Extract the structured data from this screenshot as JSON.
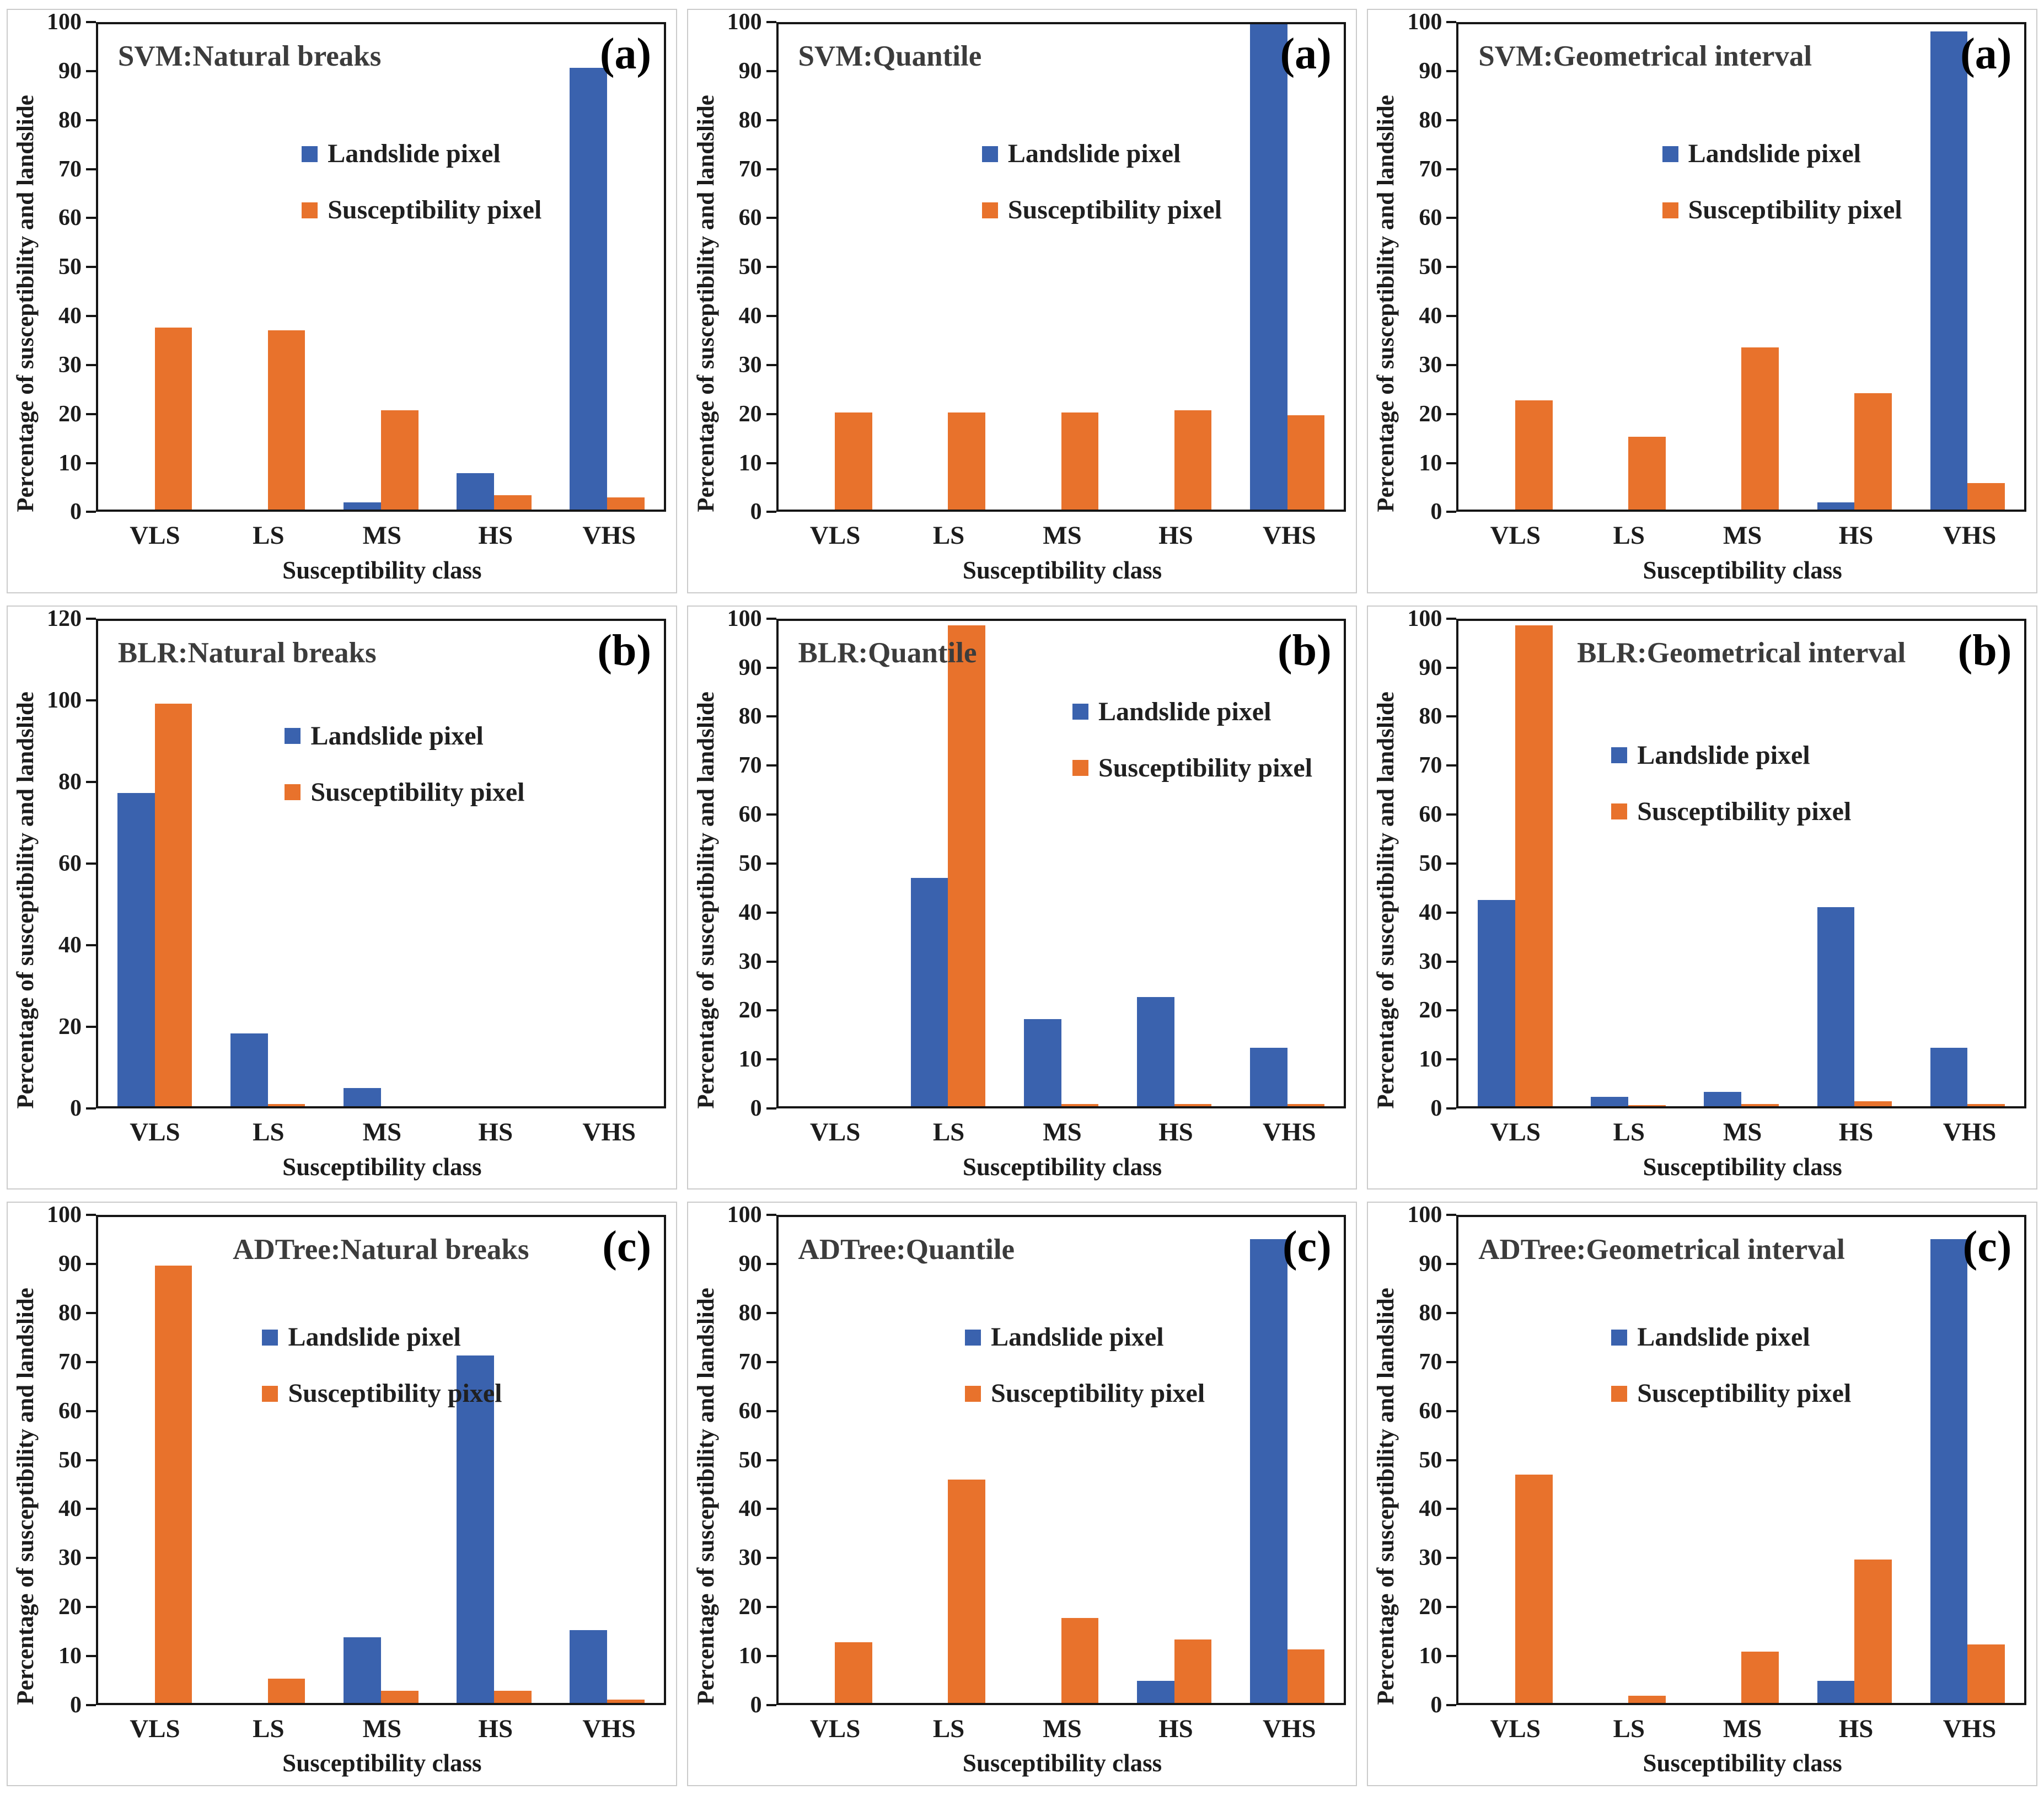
{
  "figure": {
    "type": "3x3 grouped bar chart figure",
    "panel_labels": [
      "(a)",
      "(b)",
      "(c)"
    ]
  },
  "colors": {
    "landslide": "#3A62AE",
    "susceptibility": "#E8722C",
    "axis": "#151515",
    "title_text": "#3C3C3C",
    "panel_border": "#CBCBCB"
  },
  "legend_labels": [
    "Landslide pixel",
    "Susceptibility pixel"
  ],
  "chart_data": [
    {
      "type": "bar",
      "title": "SVM:Natural breaks",
      "panel_label": "(a)",
      "ylabel": "Percentage of susceptibility and landslide",
      "xlabel": "Susceptibility class",
      "categories": [
        "VLS",
        "LS",
        "MS",
        "HS",
        "VHS"
      ],
      "series": [
        {
          "name": "Landslide pixel",
          "values": [
            0,
            0,
            1.5,
            7.5,
            91
          ]
        },
        {
          "name": "Susceptibility pixel",
          "values": [
            37.5,
            37,
            20.5,
            3,
            2.5
          ]
        }
      ],
      "ylim": [
        0,
        100
      ],
      "ytick_step": 10,
      "grid": false,
      "title_align": "left",
      "legend_pos": {
        "left": "36%",
        "top": "24%"
      }
    },
    {
      "type": "bar",
      "title": "SVM:Quantile",
      "panel_label": "(a)",
      "ylabel": "Percentage of susceptibility and landslide",
      "xlabel": "Susceptibility class",
      "categories": [
        "VLS",
        "LS",
        "MS",
        "HS",
        "VHS"
      ],
      "series": [
        {
          "name": "Landslide pixel",
          "values": [
            0,
            0,
            0,
            0,
            100
          ]
        },
        {
          "name": "Susceptibility pixel",
          "values": [
            20,
            20,
            20,
            20.5,
            19.5
          ]
        }
      ],
      "ylim": [
        0,
        100
      ],
      "ytick_step": 10,
      "grid": false,
      "title_align": "left",
      "legend_pos": {
        "left": "36%",
        "top": "24%"
      }
    },
    {
      "type": "bar",
      "title": "SVM:Geometrical interval",
      "panel_label": "(a)",
      "ylabel": "Percentage of susceptibility and landslide",
      "xlabel": "Susceptibility class",
      "categories": [
        "VLS",
        "LS",
        "MS",
        "HS",
        "VHS"
      ],
      "series": [
        {
          "name": "Landslide pixel",
          "values": [
            0,
            0,
            0,
            1.5,
            98.5
          ]
        },
        {
          "name": "Susceptibility pixel",
          "values": [
            22.5,
            15,
            33.5,
            24,
            5.5
          ]
        }
      ],
      "ylim": [
        0,
        100
      ],
      "ytick_step": 10,
      "grid": false,
      "title_align": "left",
      "legend_pos": {
        "left": "36%",
        "top": "24%"
      }
    },
    {
      "type": "bar",
      "title": "BLR:Natural breaks",
      "panel_label": "(b)",
      "ylabel": "Percentage of susceptibility and landslide",
      "xlabel": "Susceptibility class",
      "categories": [
        "VLS",
        "LS",
        "MS",
        "HS",
        "VHS"
      ],
      "series": [
        {
          "name": "Landslide pixel",
          "values": [
            77.5,
            18,
            4.5,
            0,
            0
          ]
        },
        {
          "name": "Susceptibility pixel",
          "values": [
            99.5,
            0.5,
            0,
            0,
            0
          ]
        }
      ],
      "ylim": [
        0,
        120
      ],
      "ytick_step": 20,
      "grid": false,
      "title_align": "left",
      "legend_pos": {
        "left": "33%",
        "top": "21%"
      }
    },
    {
      "type": "bar",
      "title": "BLR:Quantile",
      "panel_label": "(b)",
      "ylabel": "Percentage of susceptibility and landslide",
      "xlabel": "Susceptibility class",
      "categories": [
        "VLS",
        "LS",
        "MS",
        "HS",
        "VHS"
      ],
      "series": [
        {
          "name": "Landslide pixel",
          "values": [
            0,
            47,
            18,
            22.5,
            12
          ]
        },
        {
          "name": "Susceptibility pixel",
          "values": [
            0,
            99,
            0.5,
            0.5,
            0.5
          ]
        }
      ],
      "ylim": [
        0,
        100
      ],
      "ytick_step": 10,
      "grid": false,
      "title_align": "left",
      "legend_pos": {
        "left": "52%",
        "top": "16%"
      }
    },
    {
      "type": "bar",
      "title": "BLR:Geometrical interval",
      "panel_label": "(b)",
      "ylabel": "Percentage of susceptibility and landslide",
      "xlabel": "Susceptibility class",
      "categories": [
        "VLS",
        "LS",
        "MS",
        "HS",
        "VHS"
      ],
      "series": [
        {
          "name": "Landslide pixel",
          "values": [
            42.5,
            2,
            3,
            41,
            12
          ]
        },
        {
          "name": "Susceptibility pixel",
          "values": [
            99,
            0.3,
            0.5,
            1,
            0.5
          ]
        }
      ],
      "ylim": [
        0,
        100
      ],
      "ytick_step": 10,
      "grid": false,
      "title_align": "center",
      "legend_pos": {
        "left": "27%",
        "top": "25%"
      }
    },
    {
      "type": "bar",
      "title": "ADTree:Natural breaks",
      "panel_label": "(c)",
      "ylabel": "Percentage of susceptibility and landslide",
      "xlabel": "Susceptibility class",
      "categories": [
        "VLS",
        "LS",
        "MS",
        "HS",
        "VHS"
      ],
      "series": [
        {
          "name": "Landslide pixel",
          "values": [
            0,
            0,
            13.5,
            71.5,
            15
          ]
        },
        {
          "name": "Susceptibility pixel",
          "values": [
            90,
            5,
            2.5,
            2.5,
            0.7
          ]
        }
      ],
      "ylim": [
        0,
        100
      ],
      "ytick_step": 10,
      "grid": false,
      "title_align": "center",
      "legend_pos": {
        "left": "29%",
        "top": "22%"
      }
    },
    {
      "type": "bar",
      "title": "ADTree:Quantile",
      "panel_label": "(c)",
      "ylabel": "Percentage of susceptibility and landslide",
      "xlabel": "Susceptibility class",
      "categories": [
        "VLS",
        "LS",
        "MS",
        "HS",
        "VHS"
      ],
      "series": [
        {
          "name": "Landslide pixel",
          "values": [
            0,
            0,
            0,
            4.5,
            95.5
          ]
        },
        {
          "name": "Susceptibility pixel",
          "values": [
            12.5,
            46,
            17.5,
            13,
            11
          ]
        }
      ],
      "ylim": [
        0,
        100
      ],
      "ytick_step": 10,
      "grid": false,
      "title_align": "left",
      "legend_pos": {
        "left": "33%",
        "top": "22%"
      }
    },
    {
      "type": "bar",
      "title": "ADTree:Geometrical interval",
      "panel_label": "(c)",
      "ylabel": "Percentage of susceptibility and landslide",
      "xlabel": "Susceptibility class",
      "categories": [
        "VLS",
        "LS",
        "MS",
        "HS",
        "VHS"
      ],
      "series": [
        {
          "name": "Landslide pixel",
          "values": [
            0,
            0,
            0,
            4.5,
            95.5
          ]
        },
        {
          "name": "Susceptibility pixel",
          "values": [
            47,
            1.5,
            10.5,
            29.5,
            12
          ]
        }
      ],
      "ylim": [
        0,
        100
      ],
      "ytick_step": 10,
      "grid": false,
      "title_align": "left",
      "legend_pos": {
        "left": "27%",
        "top": "22%"
      }
    }
  ]
}
